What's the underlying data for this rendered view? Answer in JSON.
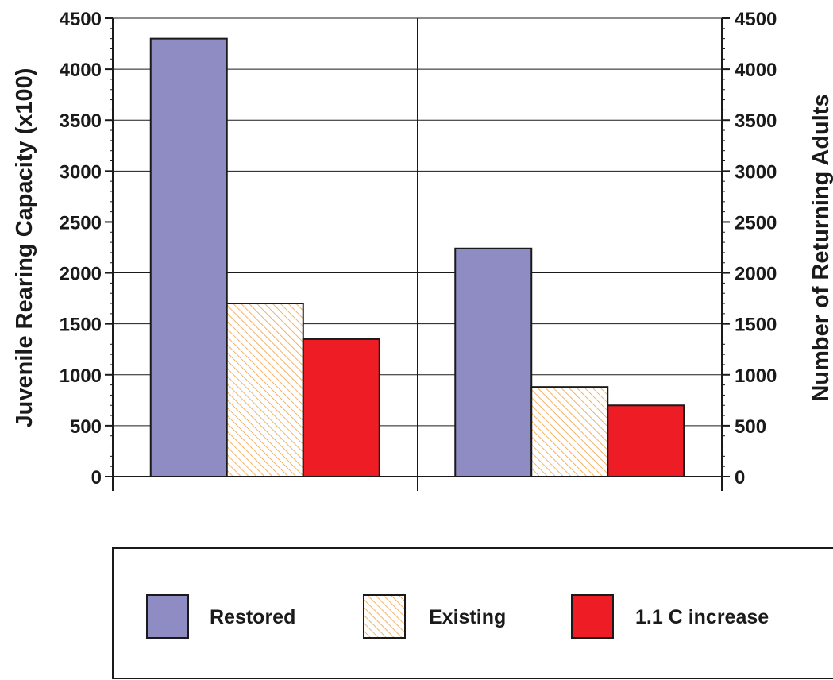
{
  "chart_data": {
    "type": "bar",
    "categories": [
      "",
      ""
    ],
    "series": [
      {
        "name": "Restored",
        "values": [
          4300,
          2240
        ],
        "color": "#8f8cc4",
        "pattern": "solid"
      },
      {
        "name": "Existing",
        "values": [
          1700,
          880
        ],
        "color": "#f0a040",
        "pattern": "hatch"
      },
      {
        "name": "1.1 C increase",
        "values": [
          1350,
          700
        ],
        "color": "#ee1c25",
        "pattern": "solid"
      }
    ],
    "ylim": [
      0,
      4500
    ],
    "y_ticks": [
      "0",
      "500",
      "1000",
      "1500",
      "2000",
      "2500",
      "3000",
      "3500",
      "4000",
      "4500"
    ],
    "ylabel": "Juvenile Rearing Capacity (x100)",
    "ylabel_right": "Number of Returning Adults",
    "title": "",
    "xlabel": "",
    "grid": true,
    "legend_position": "bottom"
  }
}
